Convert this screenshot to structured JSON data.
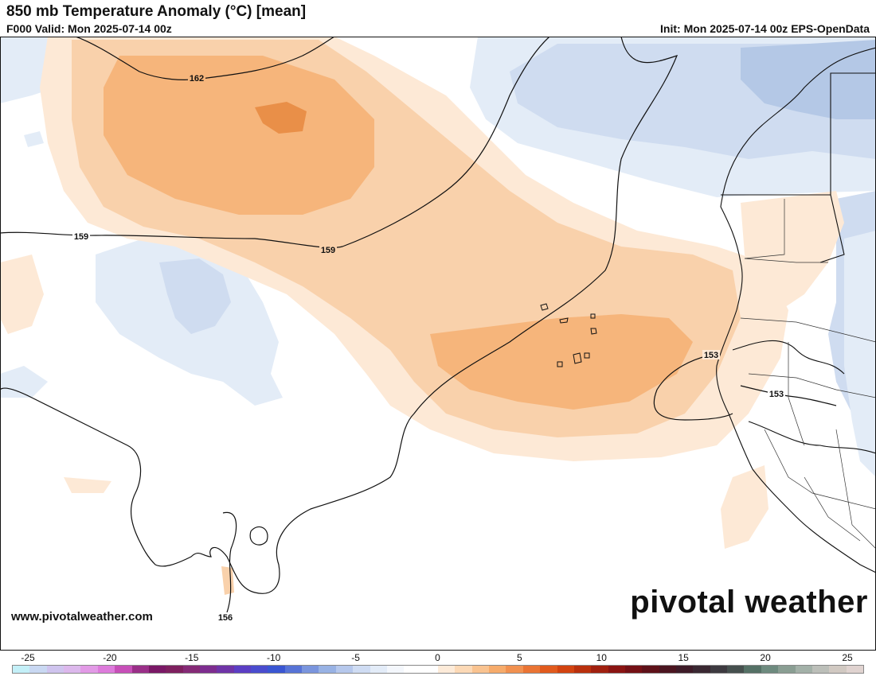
{
  "header": {
    "title": "850 mb Temperature Anomaly (°C) [mean]",
    "valid": "F000 Valid: Mon 2025-07-14 00z",
    "init": "Init: Mon 2025-07-14 00z EPS-OpenData"
  },
  "map": {
    "contour_labels": [
      "162",
      "159",
      "159",
      "153",
      "153",
      "156"
    ],
    "colors": {
      "cool_light": "#e3ecf7",
      "cool_mid": "#cfdcf0",
      "cool_dark": "#b4c8e6",
      "warm_light": "#fde9d6",
      "warm_mid": "#f9d1ab",
      "warm_strong": "#f6b57b",
      "warm_peak": "#e98f48"
    }
  },
  "footer": {
    "website": "www.pivotalweather.com",
    "brand": "pivotal weather"
  },
  "colorbar": {
    "ticks": [
      "-25",
      "-20",
      "-15",
      "-10",
      "-5",
      "0",
      "5",
      "10",
      "15",
      "20",
      "25"
    ],
    "colors": [
      "#c4f0f8",
      "#c9d8f2",
      "#cfc4ee",
      "#dcb8ec",
      "#e29ae6",
      "#dd7bdb",
      "#c74fb8",
      "#9a2f88",
      "#7a1866",
      "#7e205f",
      "#852a76",
      "#7d2d8f",
      "#6f34a7",
      "#5b3ec4",
      "#4a4cce",
      "#3a56d2",
      "#5773d6",
      "#7a95dd",
      "#98b2e4",
      "#b6c8ec",
      "#cfdcf3",
      "#e3ecf8",
      "#f4f7fc",
      "#ffffff",
      "#ffffff",
      "#fdebd9",
      "#fcd9b6",
      "#f9c390",
      "#f6ab6b",
      "#f19150",
      "#ea7434",
      "#e15a1d",
      "#d24310",
      "#b9300d",
      "#a0200f",
      "#8a1412",
      "#741015",
      "#5e1119",
      "#4b1520",
      "#3e1b28",
      "#3a2832",
      "#3d3a40",
      "#46504e",
      "#557166",
      "#6e8b7f",
      "#8a9e93",
      "#a3b1a8",
      "#bcbfb9",
      "#d1c9c2",
      "#e0d3d0"
    ]
  }
}
